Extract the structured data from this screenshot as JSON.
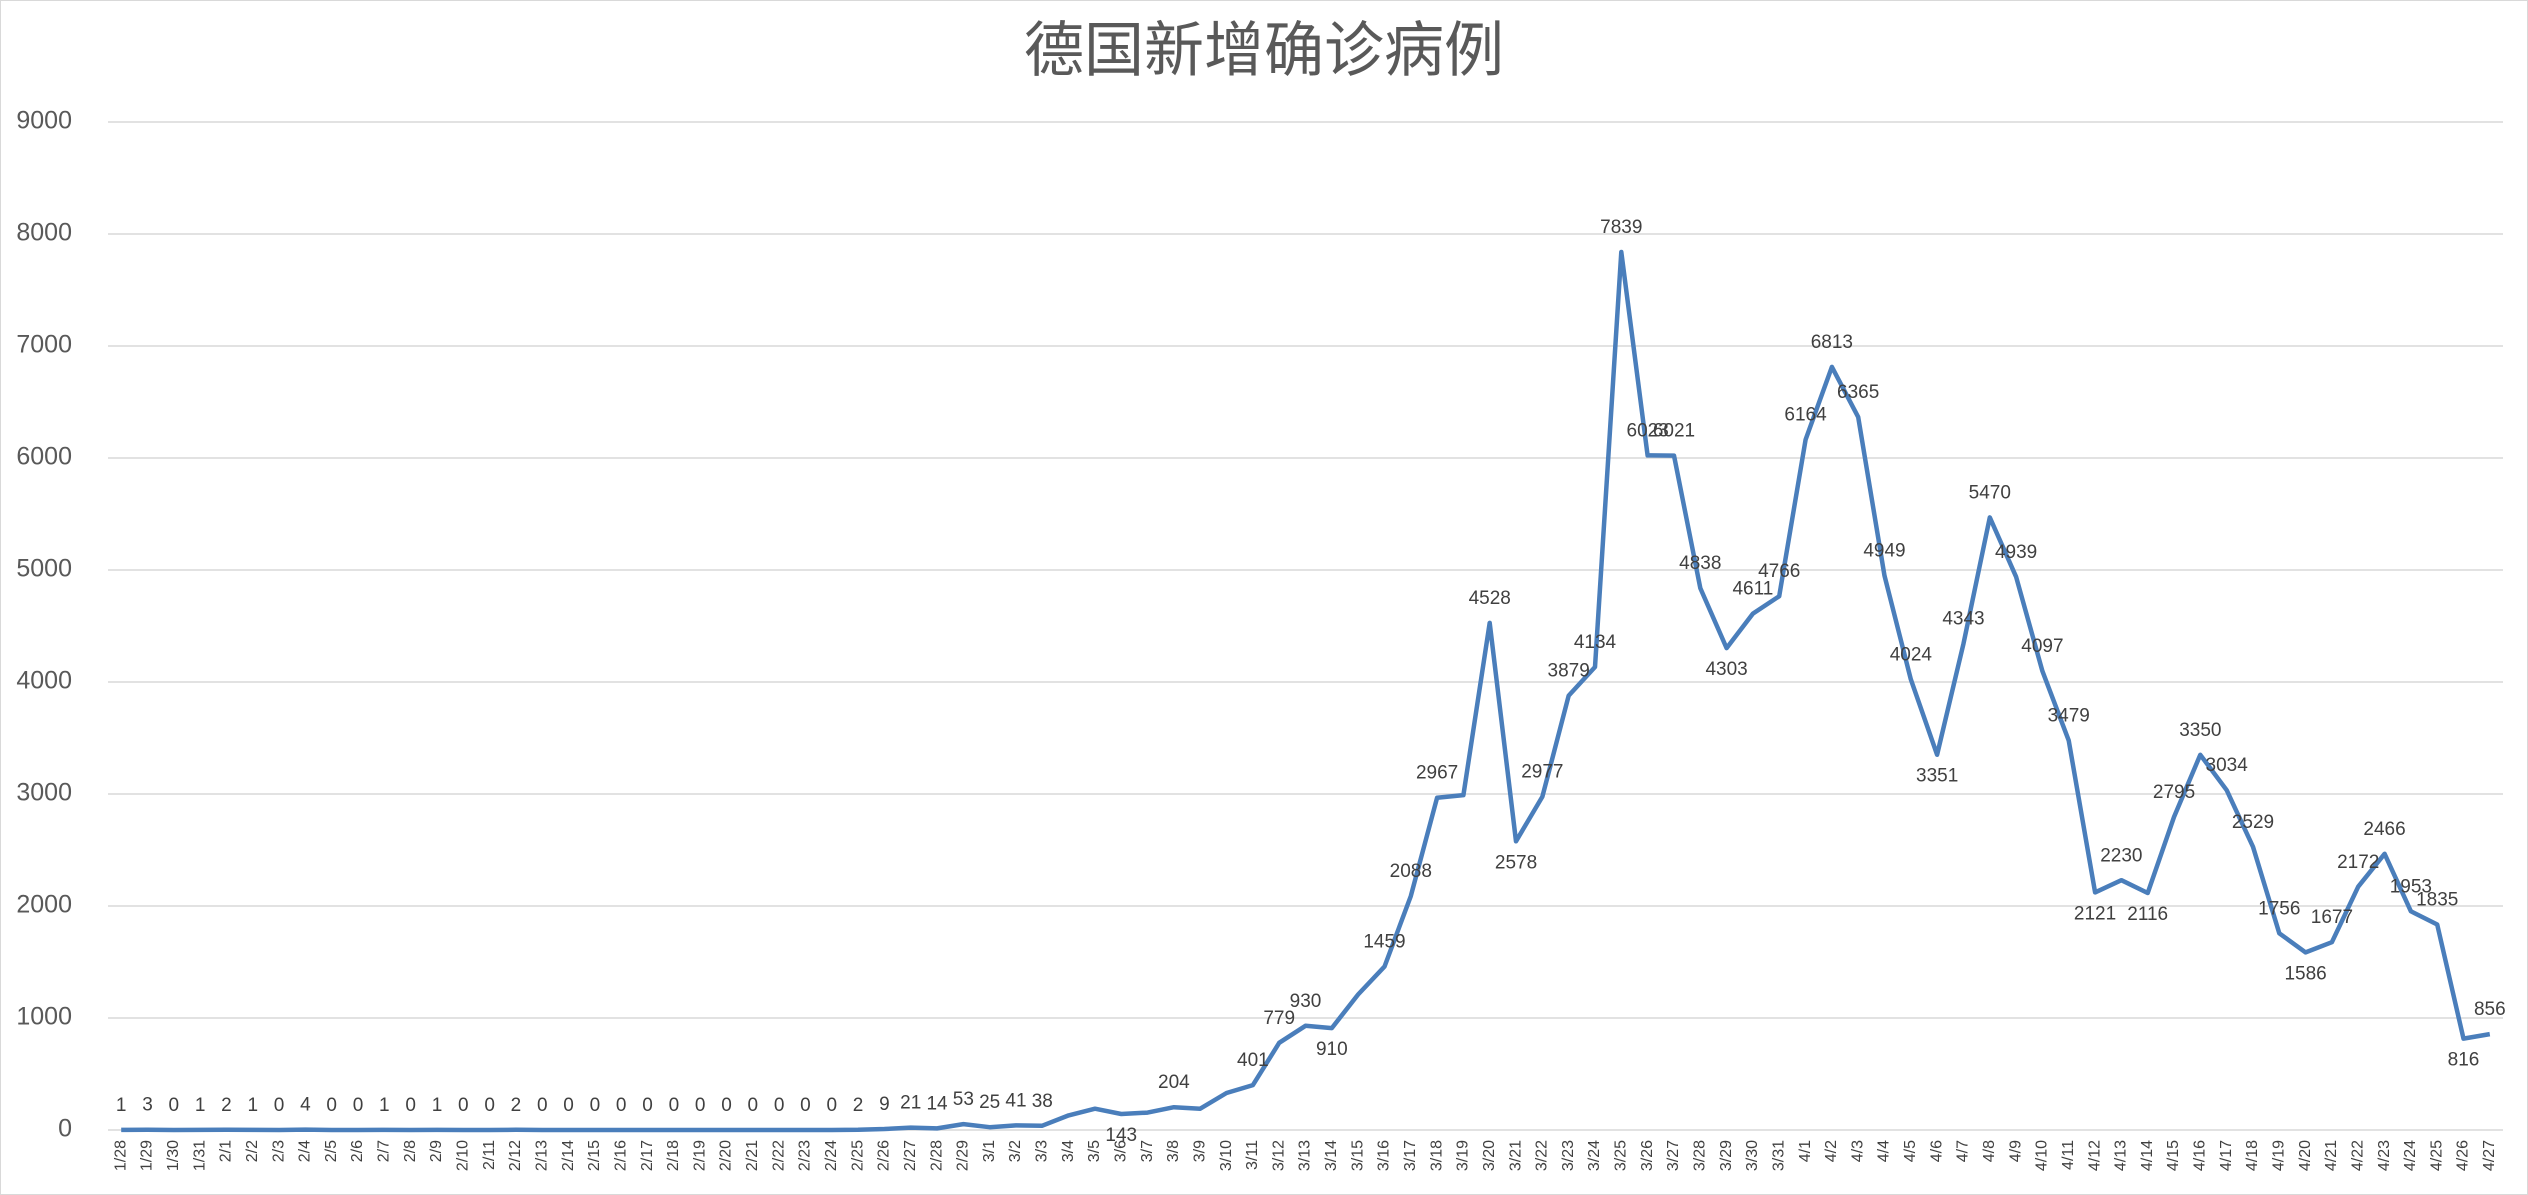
{
  "chart_data": {
    "type": "line",
    "title": "德国新增确诊病例",
    "categories": [
      "1/28",
      "1/29",
      "1/30",
      "1/31",
      "2/1",
      "2/2",
      "2/3",
      "2/4",
      "2/5",
      "2/6",
      "2/7",
      "2/8",
      "2/9",
      "2/10",
      "2/11",
      "2/12",
      "2/13",
      "2/14",
      "2/15",
      "2/16",
      "2/17",
      "2/18",
      "2/19",
      "2/20",
      "2/21",
      "2/22",
      "2/23",
      "2/24",
      "2/25",
      "2/26",
      "2/27",
      "2/28",
      "2/29",
      "3/1",
      "3/2",
      "3/3",
      "3/4",
      "3/5",
      "3/6",
      "3/7",
      "3/8",
      "3/9",
      "3/10",
      "3/11",
      "3/12",
      "3/13",
      "3/14",
      "3/15",
      "3/16",
      "3/17",
      "3/18",
      "3/19",
      "3/20",
      "3/21",
      "3/22",
      "3/23",
      "3/24",
      "3/25",
      "3/26",
      "3/27",
      "3/28",
      "3/29",
      "3/30",
      "3/31",
      "4/1",
      "4/2",
      "4/3",
      "4/4",
      "4/5",
      "4/6",
      "4/7",
      "4/8",
      "4/9",
      "4/10",
      "4/11",
      "4/12",
      "4/13",
      "4/14",
      "4/15",
      "4/16",
      "4/17",
      "4/18",
      "4/19",
      "4/20",
      "4/21",
      "4/22",
      "4/23",
      "4/24",
      "4/25",
      "4/26",
      "4/27"
    ],
    "series": [
      {
        "name": "新增确诊",
        "color": "#4a7ebb",
        "values": [
          1,
          3,
          0,
          1,
          2,
          1,
          0,
          4,
          0,
          0,
          1,
          0,
          1,
          0,
          0,
          2,
          0,
          0,
          0,
          0,
          0,
          0,
          0,
          0,
          0,
          0,
          0,
          0,
          2,
          9,
          21,
          14,
          53,
          25,
          41,
          38,
          130,
          190,
          143,
          155,
          204,
          190,
          330,
          401,
          779,
          930,
          910,
          1210,
          1459,
          2088,
          2967,
          2990,
          4528,
          2578,
          2977,
          3879,
          4134,
          7839,
          6023,
          6021,
          4838,
          4303,
          4611,
          4766,
          6164,
          6813,
          6365,
          4949,
          4024,
          3351,
          4343,
          5470,
          4939,
          4097,
          3479,
          2121,
          2230,
          2116,
          2795,
          3350,
          3034,
          2529,
          1756,
          1586,
          1677,
          2172,
          2466,
          1953,
          1835,
          816,
          856
        ],
        "value_labels": [
          "1",
          "3",
          "0",
          "1",
          "2",
          "1",
          "0",
          "4",
          "0",
          "0",
          "1",
          "0",
          "1",
          "0",
          "0",
          "2",
          "0",
          "0",
          "0",
          "0",
          "0",
          "0",
          "0",
          "0",
          "0",
          "0",
          "0",
          "0",
          "2",
          "9",
          "21",
          "14",
          "53",
          "25",
          "41",
          "38",
          null,
          null,
          "143",
          null,
          "204",
          null,
          null,
          "401",
          "779",
          "930",
          "910",
          null,
          "1459",
          "2088",
          "2967",
          null,
          "4528",
          "2578",
          "2977",
          "3879",
          "4134",
          "7839",
          "6023",
          "6021",
          "4838",
          "4303",
          "4611",
          "4766",
          "6164",
          "6813",
          "6365",
          "4949",
          "4024",
          "3351",
          "4343",
          "5470",
          "4939",
          "4097",
          "3479",
          "2121",
          "2230",
          "2116",
          "2795",
          "3350",
          "3034",
          "2529",
          "1756",
          "1586",
          "1677",
          "2172",
          "2466",
          "1953",
          "1835",
          "816",
          "856"
        ]
      }
    ],
    "ylim": [
      0,
      9000
    ],
    "yticks": [
      0,
      1000,
      2000,
      3000,
      4000,
      5000,
      6000,
      7000,
      8000,
      9000
    ],
    "grid": true
  }
}
